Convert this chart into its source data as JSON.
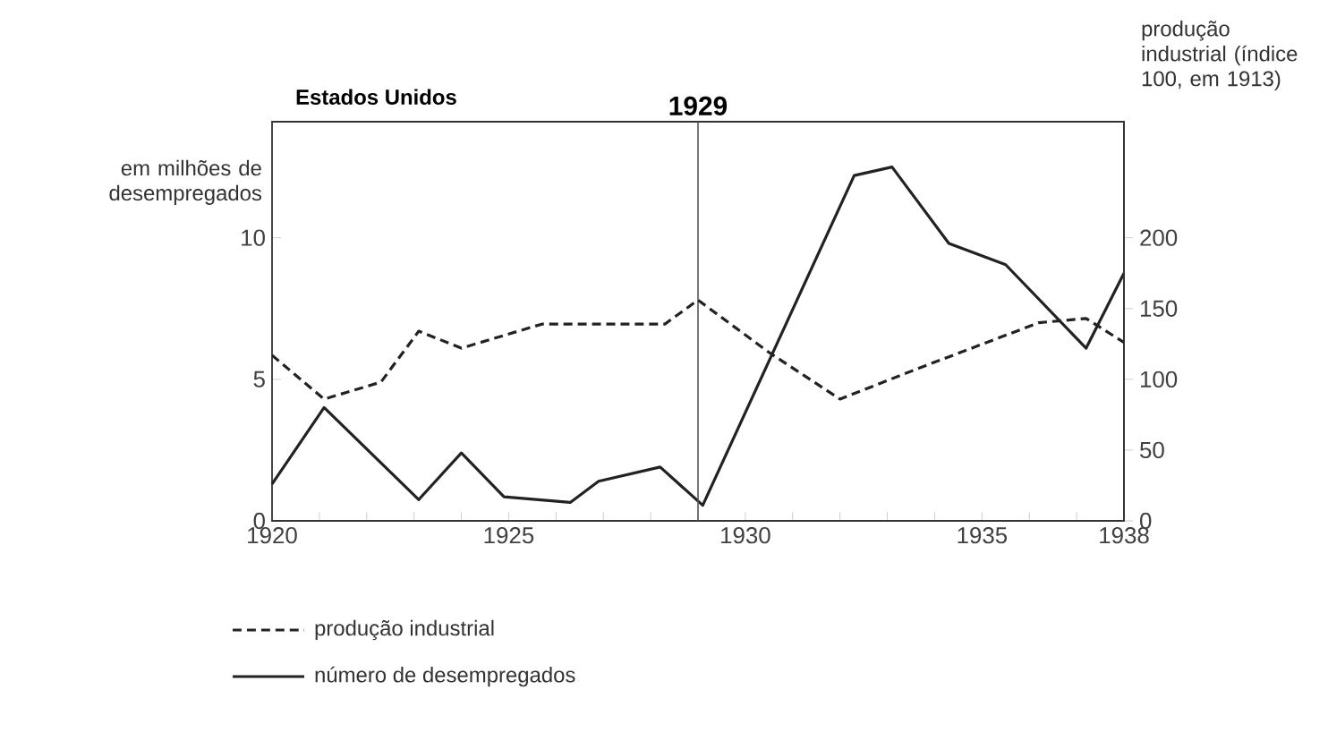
{
  "chart_data": {
    "type": "line",
    "title": "Estados Unidos",
    "ylabel": "em milhões de desempregados",
    "y2label": "produção industrial (índice 100, em 1913)",
    "xlim": [
      1920,
      1938
    ],
    "xticks": [
      1920,
      {
        "value": 1921,
        "label": null
      },
      {
        "value": 1922,
        "label": null
      },
      {
        "value": 1923,
        "label": null
      },
      {
        "value": 1924,
        "label": null
      },
      1925,
      {
        "value": 1926,
        "label": null
      },
      {
        "value": 1927,
        "label": null
      },
      {
        "value": 1928,
        "label": null
      },
      {
        "value": 1929,
        "label": null
      },
      1930,
      {
        "value": 1931,
        "label": null
      },
      {
        "value": 1932,
        "label": null
      },
      {
        "value": 1933,
        "label": null
      },
      {
        "value": 1934,
        "label": null
      },
      1935,
      {
        "value": 1936,
        "label": null
      },
      {
        "value": 1937,
        "label": null
      },
      1938
    ],
    "ylim": [
      0,
      14.1
    ],
    "yticks": [
      0,
      5,
      10
    ],
    "y2lim": [
      0,
      282
    ],
    "y2ticks": [
      0,
      50,
      100,
      150,
      200
    ],
    "ref_lines": [
      {
        "axis": "x",
        "value": 1929,
        "label": "1929",
        "color": "#555555"
      }
    ],
    "legend": "bottom left",
    "grid": false,
    "series": [
      {
        "name": "produção industrial",
        "color": "#222222",
        "line_style": "dashed",
        "axis": "y2",
        "x": [
          1920,
          1921.1,
          1922.3,
          1923.1,
          1924,
          1925.7,
          1927.3,
          1928.3,
          1929,
          1930.5,
          1932,
          1933.6,
          1936.2,
          1937.2,
          1938
        ],
        "values": [
          117,
          86,
          98,
          134,
          122,
          139,
          139,
          139,
          156,
          119,
          86,
          107,
          140,
          143,
          126
        ]
      },
      {
        "name": "número de desempregados",
        "color": "#222222",
        "line_style": "solid",
        "x": [
          1920,
          1921.1,
          1923.1,
          1924,
          1924.9,
          1926.3,
          1926.9,
          1928.2,
          1929.1,
          1932.3,
          1933.1,
          1934.3,
          1935.5,
          1937.2,
          1938
        ],
        "values": [
          1.3,
          4.0,
          0.75,
          2.4,
          0.85,
          0.65,
          1.4,
          1.9,
          0.55,
          12.2,
          12.5,
          9.8,
          9.05,
          6.1,
          8.75
        ]
      }
    ]
  }
}
